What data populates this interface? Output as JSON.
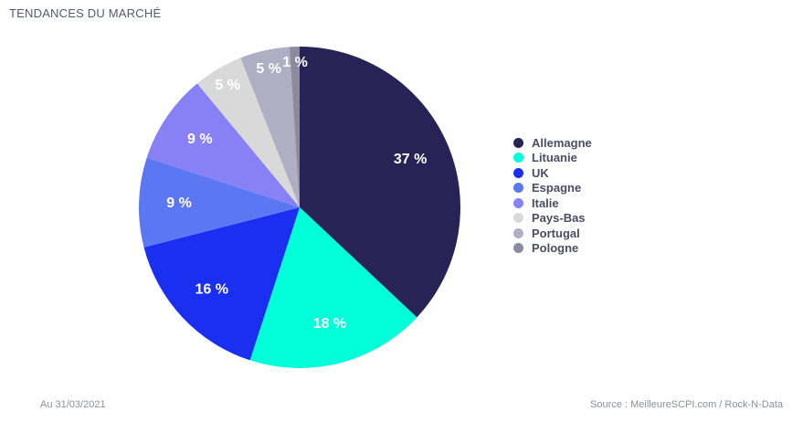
{
  "title": "TENDANCES DU MARCHÉ",
  "footer": {
    "date": "Au 31/03/2021",
    "source": "Source : MeilleureSCPI.com / Rock-N-Data"
  },
  "chart_data": {
    "type": "pie",
    "title": "TENDANCES DU MARCHÉ",
    "legend_placement": "right",
    "slices": [
      {
        "label": "Allemagne",
        "value": 37,
        "value_label": "37 %",
        "color": "#282357"
      },
      {
        "label": "Lituanie",
        "value": 18,
        "value_label": "18 %",
        "color": "#00ffd8"
      },
      {
        "label": "UK",
        "value": 16,
        "value_label": "16 %",
        "color": "#1a2ff0"
      },
      {
        "label": "Espagne",
        "value": 9,
        "value_label": "9 %",
        "color": "#5b78f2"
      },
      {
        "label": "Italie",
        "value": 9,
        "value_label": "9 %",
        "color": "#8880f5"
      },
      {
        "label": "Pays-Bas",
        "value": 5,
        "value_label": "5 %",
        "color": "#d9d9d9"
      },
      {
        "label": "Portugal",
        "value": 5,
        "value_label": "5 %",
        "color": "#b0aec2"
      },
      {
        "label": "Pologne",
        "value": 1,
        "value_label": "1 %",
        "color": "#8c8a9e"
      }
    ]
  }
}
